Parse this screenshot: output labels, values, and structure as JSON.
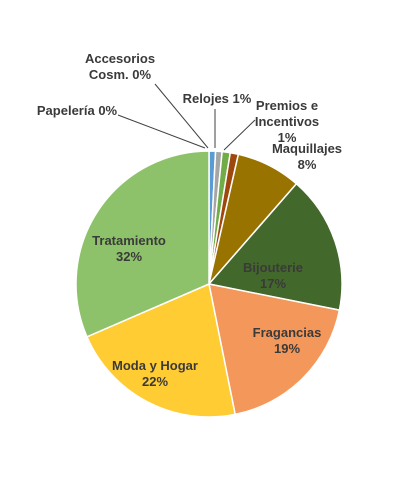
{
  "chart_data": {
    "type": "pie",
    "title": "",
    "start_angle_deg": 0,
    "direction": "clockwise",
    "slices": [
      {
        "name": "Papelería",
        "label_lines": [
          "Papelería 0%"
        ],
        "value": 0,
        "color": "#5B9BD5"
      },
      {
        "name": "Accesorios Cosm.",
        "label_lines": [
          "Accesorios",
          "Cosm. 0%"
        ],
        "value": 0,
        "color": "#A5A5A5"
      },
      {
        "name": "Relojes",
        "label_lines": [
          "Relojes 1%"
        ],
        "value": 1,
        "color": "#70AD47"
      },
      {
        "name": "Premios e Incentivos",
        "label_lines": [
          "Premios e",
          "Incentivos",
          "1%"
        ],
        "value": 1,
        "color": "#9E480E"
      },
      {
        "name": "Maquillajes",
        "label_lines": [
          "Maquillajes",
          "8%"
        ],
        "value": 8,
        "color": "#997300"
      },
      {
        "name": "Bijouterie",
        "label_lines": [
          "Bijouterie",
          "17%"
        ],
        "value": 17,
        "color": "#43682B"
      },
      {
        "name": "Fragancias",
        "label_lines": [
          "Fragancias",
          "19%"
        ],
        "value": 19,
        "color": "#F4975A"
      },
      {
        "name": "Moda y Hogar",
        "label_lines": [
          "Moda y Hogar",
          "22%"
        ],
        "value": 22,
        "color": "#FFCC33"
      },
      {
        "name": "Tratamiento",
        "label_lines": [
          "Tratamiento",
          "32%"
        ],
        "value": 32,
        "color": "#8DC26A"
      }
    ]
  }
}
